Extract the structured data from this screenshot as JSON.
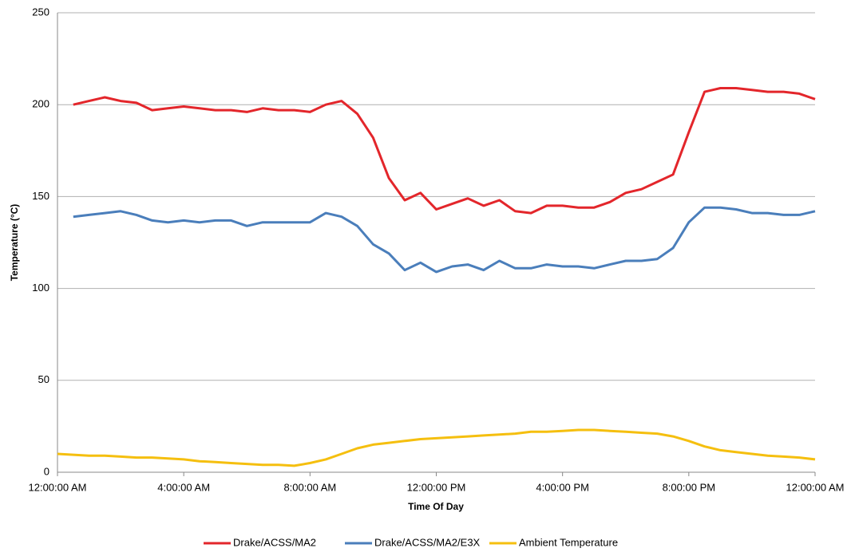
{
  "chart_data": {
    "type": "line",
    "x_label": "Time Of Day",
    "y_label": "Temperature (°C)",
    "x": [
      0,
      0.5,
      1,
      1.5,
      2,
      2.5,
      3,
      3.5,
      4,
      4.5,
      5,
      5.5,
      6,
      6.5,
      7,
      7.5,
      8,
      8.5,
      9,
      9.5,
      10,
      10.5,
      11,
      11.5,
      12,
      12.5,
      13,
      13.5,
      14,
      14.5,
      15,
      15.5,
      16,
      16.5,
      17,
      17.5,
      18,
      18.5,
      19,
      19.5,
      20,
      20.5,
      21,
      21.5,
      22,
      22.5,
      23,
      23.5,
      24
    ],
    "series": [
      {
        "name": "Drake/ACSS/MA2",
        "color": "#e3262b",
        "values": [
          null,
          200,
          202,
          204,
          202,
          201,
          197,
          198,
          199,
          198,
          197,
          197,
          196,
          198,
          197,
          197,
          196,
          200,
          202,
          195,
          182,
          160,
          148,
          152,
          143,
          146,
          149,
          145,
          148,
          142,
          141,
          145,
          145,
          144,
          144,
          147,
          152,
          154,
          158,
          162,
          185,
          207,
          209,
          209,
          208,
          207,
          207,
          206,
          203
        ]
      },
      {
        "name": "Drake/ACSS/MA2/E3X",
        "color": "#4a7ebb",
        "values": [
          null,
          139,
          140,
          141,
          142,
          140,
          137,
          136,
          137,
          136,
          137,
          137,
          134,
          136,
          136,
          136,
          136,
          141,
          139,
          134,
          124,
          119,
          110,
          114,
          109,
          112,
          113,
          110,
          115,
          111,
          111,
          113,
          112,
          112,
          111,
          113,
          115,
          115,
          116,
          122,
          136,
          144,
          144,
          143,
          141,
          141,
          140,
          140,
          142
        ]
      },
      {
        "name": "Ambient Temperature",
        "color": "#f5bf0f",
        "values": [
          10,
          9.5,
          9,
          9,
          8.5,
          8,
          8,
          7.5,
          7,
          6,
          5.5,
          5,
          4.5,
          4,
          4,
          3.5,
          5,
          7,
          10,
          13,
          15,
          16,
          17,
          18,
          18.5,
          19,
          19.5,
          20,
          20.5,
          21,
          22,
          22,
          22.5,
          23,
          23,
          22.5,
          22,
          21.5,
          21,
          19.5,
          17,
          14,
          12,
          11,
          10,
          9,
          8.5,
          8,
          7
        ]
      }
    ],
    "xlim": [
      0,
      24
    ],
    "xticks": [
      {
        "value": 0,
        "label": "12:00:00 AM"
      },
      {
        "value": 4,
        "label": "4:00:00 AM"
      },
      {
        "value": 8,
        "label": "8:00:00 AM"
      },
      {
        "value": 12,
        "label": "12:00:00 PM"
      },
      {
        "value": 16,
        "label": "4:00:00 PM"
      },
      {
        "value": 20,
        "label": "8:00:00 PM"
      },
      {
        "value": 24,
        "label": "12:00:00 AM"
      }
    ],
    "ylim": [
      0,
      250
    ],
    "yticks": [
      0,
      50,
      100,
      150,
      200,
      250
    ],
    "grid": true,
    "legend": "bottom"
  }
}
